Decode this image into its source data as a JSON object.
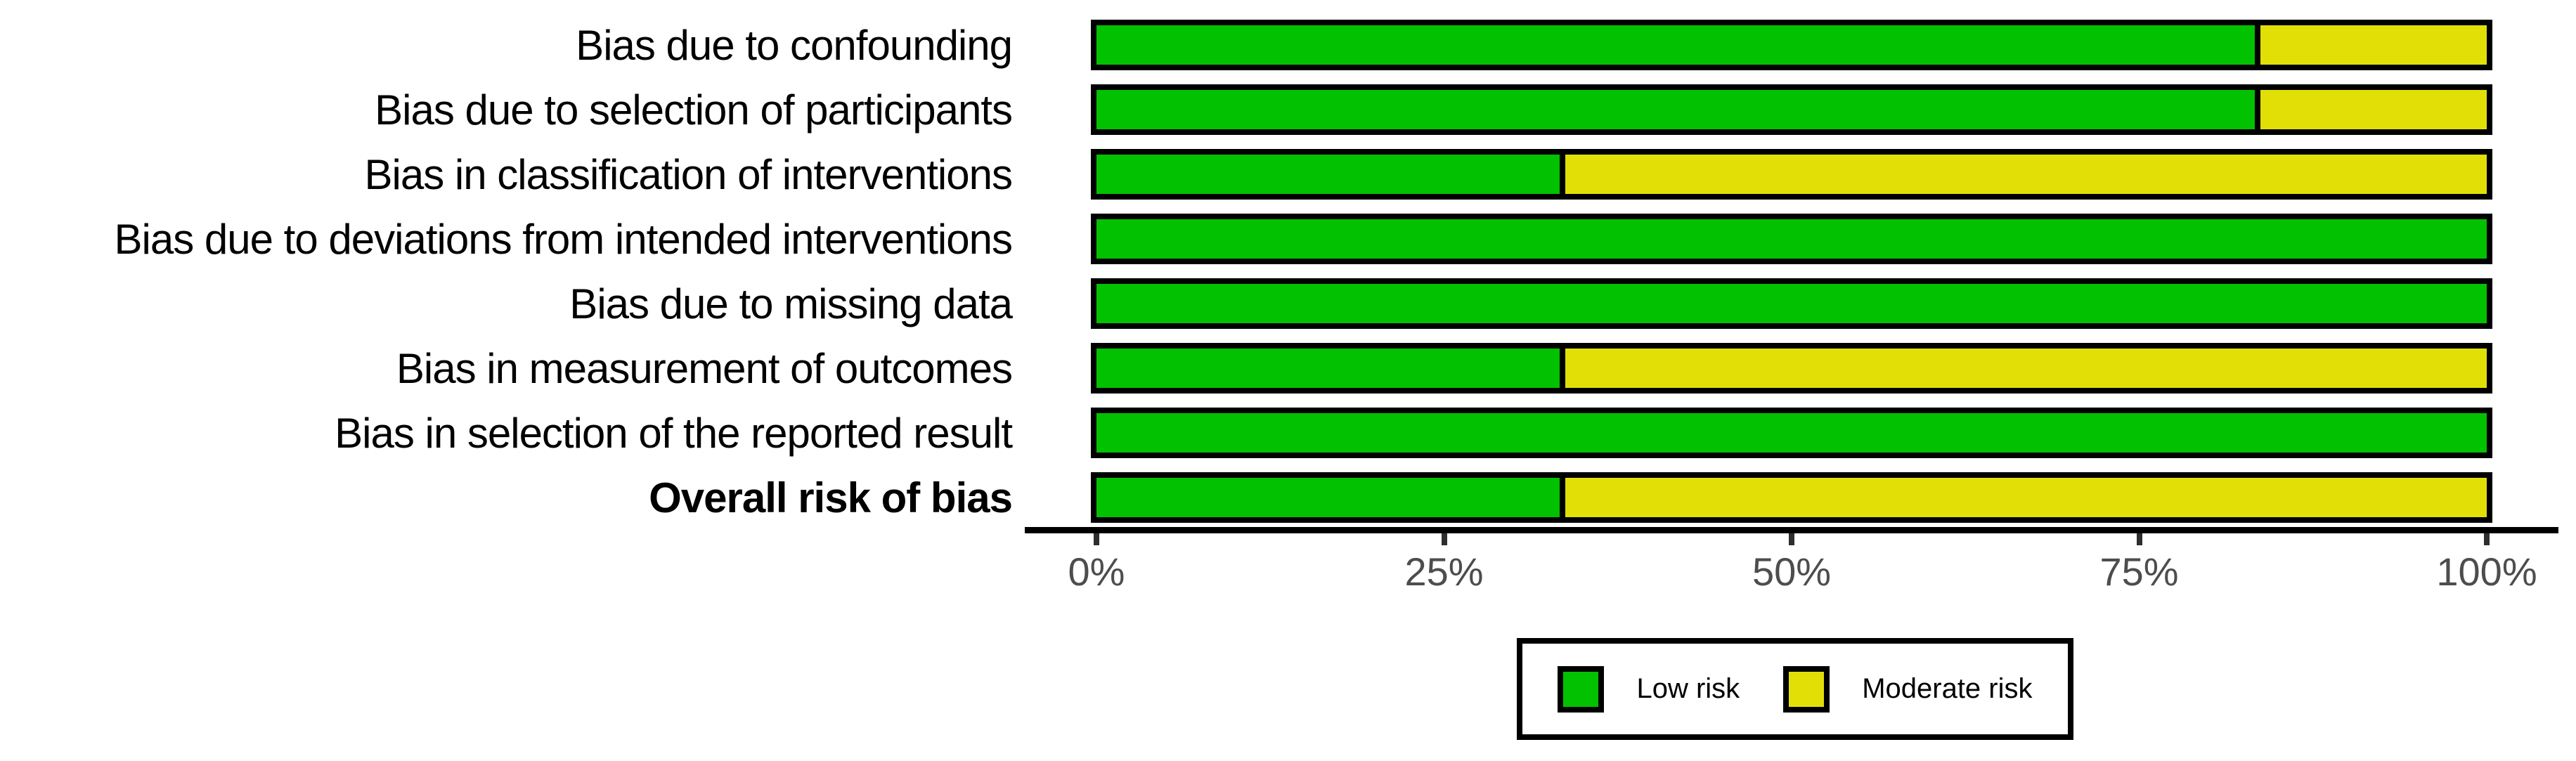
{
  "chart_data": {
    "type": "bar",
    "orientation": "horizontal",
    "stacked": true,
    "grid": false,
    "title": "",
    "xlabel": "",
    "ylabel": "",
    "colors": {
      "low_risk": "#02C100",
      "moderate_risk": "#E2DF07",
      "bar_border": "#000000",
      "axis_line": "#000000",
      "tick_mark": "#2E2E2E",
      "tick_label": "#4D4D4D",
      "background": "#FFFFFF"
    },
    "x_axis": {
      "range": [
        0,
        100
      ],
      "tick_values": [
        0,
        25,
        50,
        75,
        100
      ],
      "tick_labels": [
        "0%",
        "25%",
        "50%",
        "75%",
        "100%"
      ]
    },
    "series_names": [
      "Low risk",
      "Moderate risk"
    ],
    "rows": [
      {
        "category": "Bias due to confounding",
        "bold": false,
        "low_risk_pct": 83.3,
        "moderate_risk_pct": 16.7
      },
      {
        "category": "Bias due to selection of participants",
        "bold": false,
        "low_risk_pct": 83.3,
        "moderate_risk_pct": 16.7
      },
      {
        "category": "Bias in classification of interventions",
        "bold": false,
        "low_risk_pct": 33.3,
        "moderate_risk_pct": 66.7
      },
      {
        "category": "Bias due to deviations from intended interventions",
        "bold": false,
        "low_risk_pct": 100,
        "moderate_risk_pct": 0
      },
      {
        "category": "Bias due to missing data",
        "bold": false,
        "low_risk_pct": 100,
        "moderate_risk_pct": 0
      },
      {
        "category": "Bias in measurement of outcomes",
        "bold": false,
        "low_risk_pct": 33.3,
        "moderate_risk_pct": 66.7
      },
      {
        "category": "Bias in selection of the reported result",
        "bold": false,
        "low_risk_pct": 100,
        "moderate_risk_pct": 0
      },
      {
        "category": "Overall risk of bias",
        "bold": true,
        "low_risk_pct": 33.3,
        "moderate_risk_pct": 66.7
      }
    ],
    "legend": {
      "position": "bottom-center",
      "entries": [
        {
          "label": "Low risk",
          "color": "#02C100"
        },
        {
          "label": "Moderate risk",
          "color": "#E2DF07"
        }
      ]
    }
  }
}
